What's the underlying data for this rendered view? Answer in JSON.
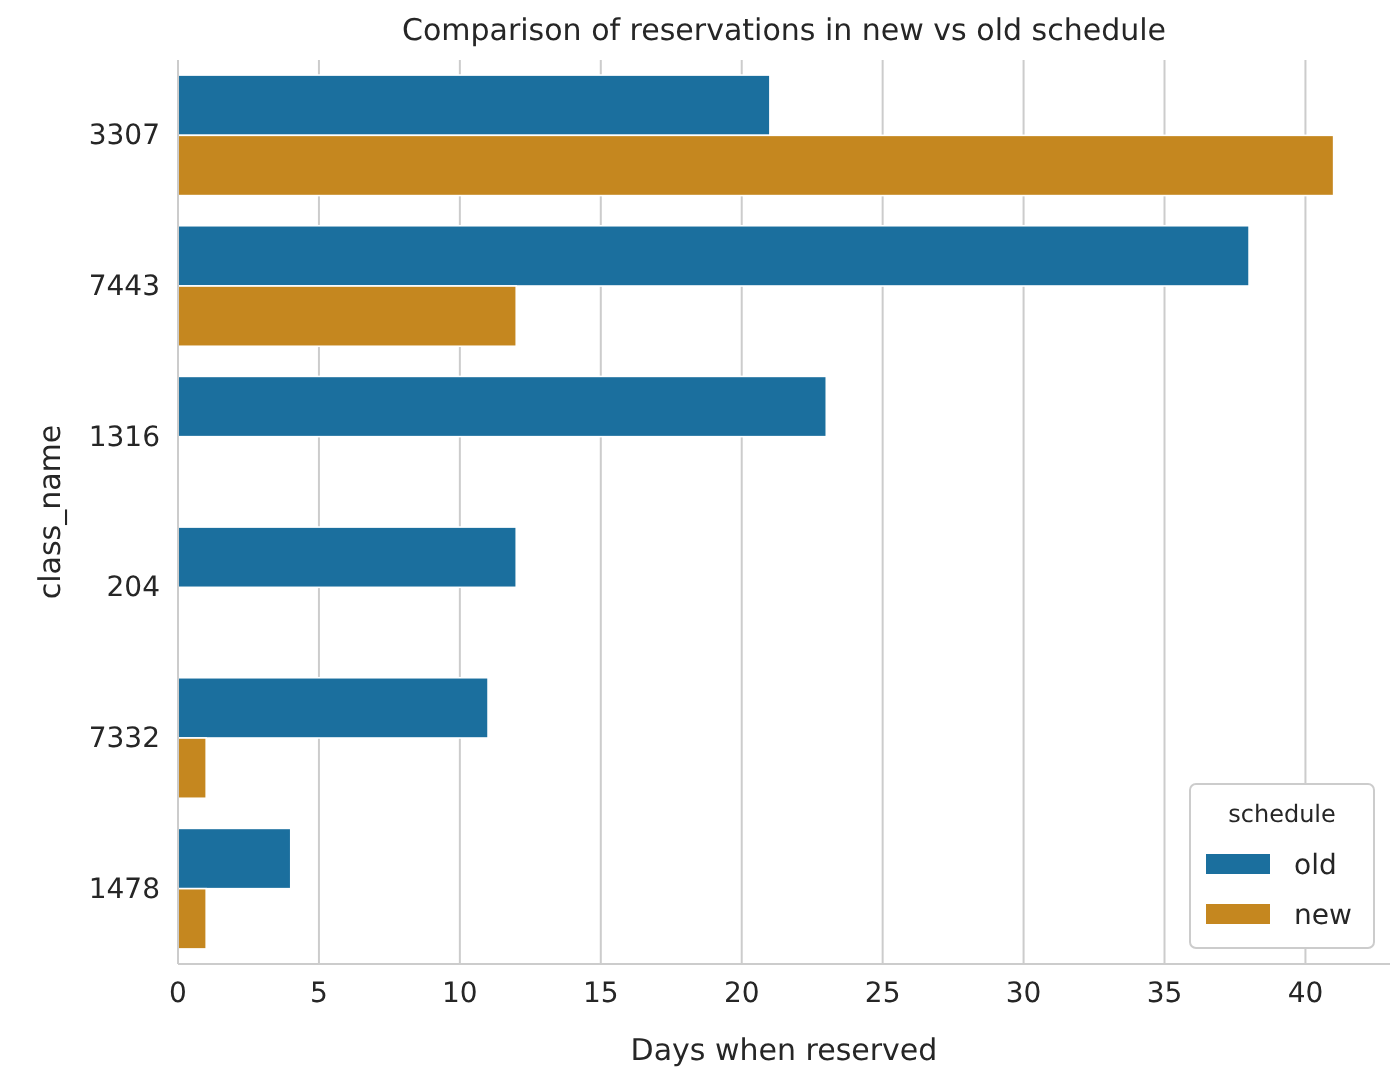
{
  "chart_data": {
    "type": "bar",
    "orientation": "horizontal",
    "title": "Comparison of reservations in new vs old schedule",
    "xlabel": "Days when reserved",
    "ylabel": "class_name",
    "legend_title": "schedule",
    "legend": "bottom right",
    "grid": "x",
    "categories": [
      "3307",
      "7443",
      "1316",
      "204",
      "7332",
      "1478"
    ],
    "series": [
      {
        "name": "old",
        "color": "#1b6f9e",
        "values": [
          21,
          38,
          23,
          12,
          11,
          4
        ]
      },
      {
        "name": "new",
        "color": "#c5871f",
        "values": [
          41,
          12,
          null,
          null,
          1,
          1
        ]
      }
    ],
    "xlim": [
      0,
      43
    ],
    "xticks": [
      0,
      5,
      10,
      15,
      20,
      25,
      30,
      35,
      40
    ]
  }
}
